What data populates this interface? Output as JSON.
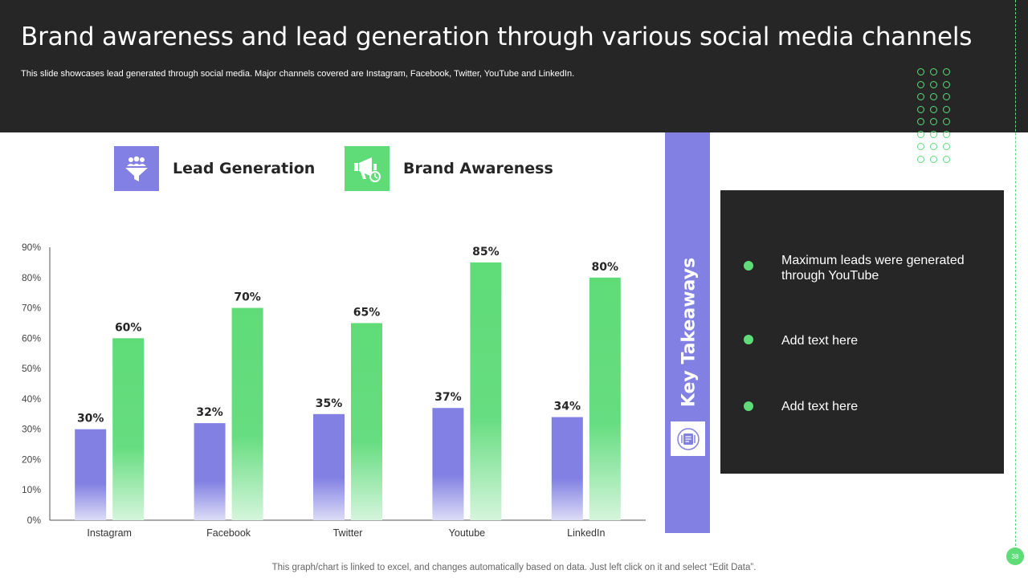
{
  "header": {
    "title": "Brand awareness and lead generation through various social media channels",
    "subtitle": "This slide showcases lead generated through social media. Major channels covered are Instagram, Facebook, Twitter, YouTube and LinkedIn."
  },
  "legend": {
    "lead": {
      "label": "Lead Generation",
      "icon": "funnel-users-icon",
      "color": "#8281e3"
    },
    "brand": {
      "label": "Brand Awareness",
      "icon": "megaphone-icon",
      "color": "#5fdc78"
    }
  },
  "chart_data": {
    "type": "bar",
    "categories": [
      "Instagram",
      "Facebook",
      "Twitter",
      "Youtube",
      "LinkedIn"
    ],
    "series": [
      {
        "name": "Lead Generation",
        "values": [
          30,
          32,
          35,
          37,
          34
        ],
        "color": "#8281e3"
      },
      {
        "name": "Brand Awareness",
        "values": [
          60,
          70,
          65,
          85,
          80
        ],
        "color": "#5fdc78"
      }
    ],
    "data_labels": [
      [
        "30%",
        "32%",
        "35%",
        "37%",
        "34%"
      ],
      [
        "60%",
        "70%",
        "65%",
        "85%",
        "80%"
      ]
    ],
    "ylim": [
      0,
      90
    ],
    "yticks": [
      "0%",
      "10%",
      "20%",
      "30%",
      "40%",
      "50%",
      "60%",
      "70%",
      "80%",
      "90%"
    ],
    "grid": false,
    "title": "",
    "xlabel": "",
    "ylabel": ""
  },
  "key_takeaways": {
    "label": "Key Takeaways",
    "icon": "notes-icon",
    "items": [
      "Maximum leads were generated through YouTube",
      "Add text here",
      "Add text here"
    ]
  },
  "footer": {
    "note": "This graph/chart is linked to excel,  and changes automatically based on data. Just left click on it and select “Edit Data”.",
    "page_number": "38"
  },
  "colors": {
    "dark": "#262626",
    "purple": "#8281e3",
    "green": "#5fdc78"
  }
}
